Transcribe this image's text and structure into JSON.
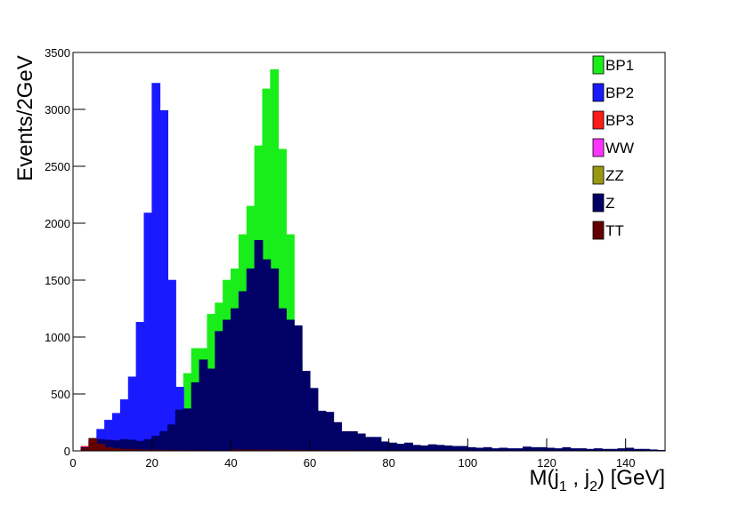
{
  "chart_data": {
    "type": "histogram",
    "xlabel": [
      "M(j",
      "1",
      " , j",
      "2",
      ") [GeV]"
    ],
    "ylabel": "Events/2GeV",
    "bins": [
      0,
      2,
      4,
      6,
      8,
      10,
      12,
      14,
      16,
      18,
      20,
      22,
      24,
      26,
      28,
      30,
      32,
      34,
      36,
      38,
      40,
      42,
      44,
      46,
      48,
      50,
      52,
      54,
      56,
      58,
      60,
      62,
      64,
      66,
      68,
      70,
      72,
      74,
      76,
      78,
      80,
      82,
      84,
      86,
      88,
      90,
      92,
      94,
      96,
      98,
      100,
      102,
      104,
      106,
      108,
      110,
      112,
      114,
      116,
      118,
      120,
      122,
      124,
      126,
      128,
      130,
      132,
      134,
      136,
      138,
      140,
      142,
      144,
      146,
      148,
      150
    ],
    "xlim": [
      0,
      150
    ],
    "xticks": [
      0,
      20,
      40,
      60,
      80,
      100,
      120,
      140
    ],
    "ylim": [
      0,
      3500
    ],
    "yticks": [
      0,
      500,
      1000,
      1500,
      2000,
      2500,
      3000,
      3500
    ],
    "legend": "top-right",
    "series": [
      {
        "name": "BP1",
        "color": "#1aee1a",
        "values": [
          0,
          5,
          10,
          15,
          20,
          25,
          35,
          45,
          60,
          80,
          100,
          130,
          170,
          220,
          680,
          900,
          900,
          1200,
          1300,
          1500,
          1600,
          1900,
          2150,
          2680,
          3180,
          3350,
          2650,
          1900,
          780,
          600,
          400,
          260,
          200,
          150,
          110,
          90,
          70,
          55,
          45,
          40,
          35,
          30,
          27,
          24,
          22,
          20,
          18,
          16,
          15,
          14,
          13,
          12,
          11,
          10,
          10,
          9,
          9,
          8,
          8,
          7,
          7,
          6,
          6,
          6,
          5,
          5,
          5,
          4,
          4,
          4,
          4,
          3,
          3,
          3,
          3
        ]
      },
      {
        "name": "BP2",
        "color": "#1a1aff",
        "values": [
          0,
          30,
          110,
          190,
          270,
          330,
          450,
          650,
          1130,
          2090,
          3230,
          2990,
          1500,
          560,
          300,
          200,
          150,
          120,
          100,
          90,
          80,
          70,
          60,
          55,
          50,
          45,
          40,
          35,
          30,
          30,
          30,
          28,
          26,
          24,
          22,
          20,
          20,
          18,
          18,
          16,
          16,
          15,
          15,
          14,
          14,
          13,
          13,
          12,
          12,
          11,
          11,
          10,
          10,
          10,
          9,
          9,
          9,
          8,
          8,
          8,
          8,
          7,
          7,
          7,
          7,
          6,
          6,
          6,
          6,
          5,
          5,
          5,
          5,
          5,
          4
        ]
      },
      {
        "name": "BP3",
        "color": "#ff1a1a",
        "values": [
          0,
          40,
          80,
          70,
          60,
          50,
          45,
          40,
          35,
          30,
          28,
          26,
          24,
          22,
          20,
          18,
          16,
          14,
          12,
          10,
          10,
          9,
          9,
          8,
          8,
          7,
          7,
          6,
          6,
          5,
          5,
          5,
          4,
          4,
          4,
          4,
          3,
          3,
          3,
          3,
          3,
          3,
          2,
          2,
          2,
          2,
          2,
          2,
          2,
          2,
          1,
          1,
          1,
          1,
          1,
          1,
          1,
          1,
          1,
          1,
          1,
          1,
          1,
          1,
          1,
          1,
          1,
          1,
          1,
          1,
          0,
          0,
          0,
          0,
          0
        ]
      },
      {
        "name": "WW",
        "color": "#ff33ff",
        "values": [
          0,
          10,
          25,
          30,
          30,
          28,
          26,
          24,
          22,
          20,
          18,
          16,
          15,
          14,
          13,
          12,
          11,
          10,
          9,
          8,
          10,
          9,
          9,
          8,
          8,
          7,
          7,
          6,
          6,
          5,
          5,
          5,
          4,
          4,
          4,
          4,
          3,
          3,
          3,
          3,
          3,
          3,
          2,
          2,
          2,
          2,
          2,
          2,
          2,
          2,
          1,
          1,
          1,
          1,
          1,
          1,
          1,
          1,
          1,
          1,
          1,
          1,
          1,
          1,
          1,
          1,
          1,
          1,
          1,
          1,
          0,
          0,
          0,
          0,
          0
        ]
      },
      {
        "name": "ZZ",
        "color": "#999911",
        "values": [
          0,
          5,
          15,
          20,
          20,
          20,
          20,
          20,
          20,
          20,
          20,
          20,
          20,
          20,
          20,
          20,
          20,
          20,
          20,
          20,
          10,
          9,
          9,
          8,
          8,
          7,
          7,
          6,
          6,
          5,
          5,
          5,
          4,
          4,
          4,
          4,
          3,
          3,
          3,
          3,
          3,
          3,
          2,
          2,
          2,
          2,
          2,
          2,
          2,
          2,
          1,
          1,
          1,
          1,
          1,
          1,
          1,
          1,
          1,
          1,
          1,
          1,
          1,
          1,
          1,
          1,
          1,
          1,
          1,
          1,
          0,
          0,
          0,
          0,
          0
        ]
      },
      {
        "name": "Z",
        "color": "#000066",
        "values": [
          0,
          30,
          90,
          100,
          95,
          90,
          100,
          95,
          85,
          100,
          130,
          170,
          230,
          360,
          370,
          600,
          800,
          720,
          1050,
          1150,
          1250,
          1400,
          1600,
          1850,
          1680,
          1600,
          1250,
          1150,
          1100,
          700,
          550,
          350,
          340,
          250,
          170,
          170,
          150,
          120,
          120,
          80,
          70,
          60,
          70,
          50,
          45,
          55,
          50,
          45,
          40,
          40,
          30,
          25,
          30,
          20,
          25,
          20,
          20,
          35,
          30,
          30,
          25,
          20,
          30,
          20,
          20,
          15,
          20,
          15,
          15,
          20,
          25,
          15,
          15,
          10,
          5
        ]
      },
      {
        "name": "TT",
        "color": "#660000",
        "values": [
          0,
          20,
          110,
          60,
          30,
          20,
          15,
          12,
          10,
          8,
          7,
          6,
          5,
          5,
          4,
          4,
          3,
          3,
          3,
          3,
          10,
          9,
          9,
          8,
          8,
          7,
          7,
          6,
          6,
          5,
          5,
          5,
          4,
          4,
          4,
          4,
          3,
          3,
          3,
          3,
          3,
          3,
          2,
          2,
          2,
          2,
          2,
          2,
          2,
          2,
          1,
          1,
          1,
          1,
          1,
          1,
          1,
          1,
          1,
          1,
          1,
          1,
          1,
          1,
          1,
          1,
          1,
          1,
          1,
          1,
          0,
          0,
          0,
          0,
          0
        ]
      }
    ]
  }
}
